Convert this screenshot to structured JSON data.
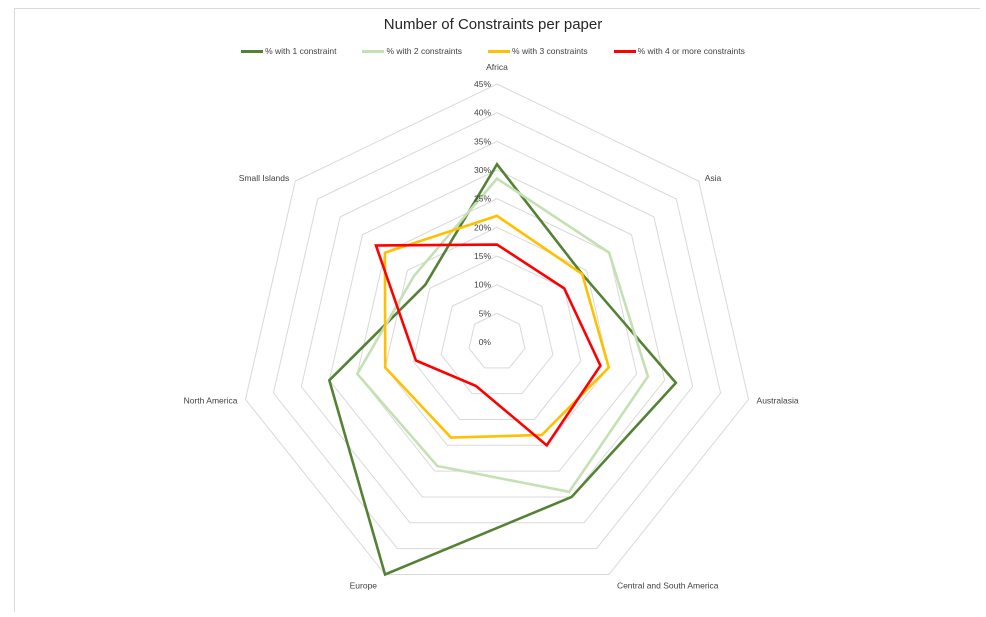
{
  "chart_data": {
    "type": "radar",
    "title": "Number of Constraints per paper",
    "categories": [
      "Africa",
      "Asia",
      "Australasia",
      "Central and South America",
      "Europe",
      "North America",
      "Small Islands"
    ],
    "rticks": [
      "0%",
      "5%",
      "10%",
      "15%",
      "20%",
      "25%",
      "30%",
      "35%",
      "40%",
      "45%"
    ],
    "rlim": [
      0,
      45
    ],
    "grid": true,
    "legend_position": "top",
    "series": [
      {
        "name": "% with 1 constraint",
        "color": "#548235",
        "values": [
          31,
          19,
          32,
          30,
          45,
          30,
          16
        ]
      },
      {
        "name": "% with 2 constraints",
        "color": "#c5e0b4",
        "values": [
          28.5,
          25,
          27,
          29,
          24,
          25,
          18.5
        ]
      },
      {
        "name": "% with 3 constraints",
        "color": "#ffc000",
        "values": [
          22,
          19,
          20,
          18,
          18.5,
          20,
          25
        ]
      },
      {
        "name": "% with 4 or more constraints",
        "color": "#ff0000",
        "values": [
          17,
          15,
          18.5,
          20,
          8.5,
          14.5,
          27
        ]
      }
    ]
  }
}
